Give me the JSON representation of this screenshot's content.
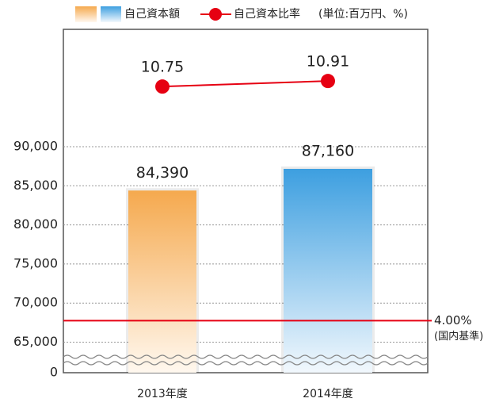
{
  "chart_data": {
    "type": "combo",
    "categories": [
      "2013年度",
      "2014年度"
    ],
    "series": [
      {
        "name": "自己資本額",
        "type": "bar",
        "colors": [
          "#f5a94e",
          "#3d9fe0"
        ],
        "values": [
          84390,
          87160
        ],
        "value_labels": [
          "84,390",
          "87,160"
        ]
      },
      {
        "name": "自己資本比率",
        "type": "line",
        "axis": "y2",
        "color": "#e60012",
        "values": [
          10.75,
          10.91
        ]
      }
    ],
    "unit_note": "(単位:百万円、%)",
    "ylim": [
      61100,
      105000
    ],
    "yticks": [
      0,
      {
        "value": 65000,
        "label": "65,000"
      },
      {
        "value": 70000,
        "label": "70,000"
      },
      {
        "value": 75000,
        "label": "75,000"
      },
      {
        "value": 80000,
        "label": "80,000"
      },
      {
        "value": 85000,
        "label": "85,000"
      },
      {
        "value": 90000,
        "label": "90,000"
      }
    ],
    "y2lim": [
      2.5,
      12.4
    ],
    "reference": {
      "value": 4,
      "label": "4.00%",
      "note": "(国内基準)",
      "axis": "y2",
      "color": "#e60012"
    },
    "grid": true,
    "axis_break": true
  }
}
